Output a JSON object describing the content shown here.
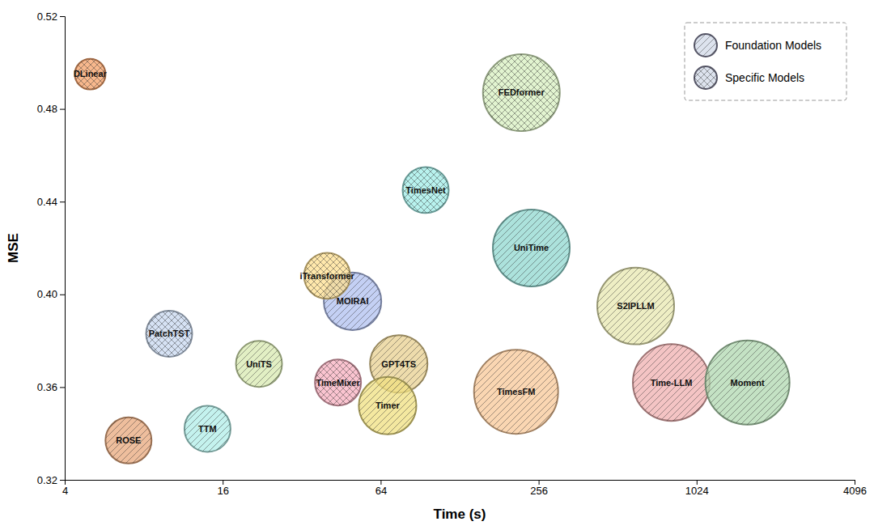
{
  "chart_data": {
    "type": "bubble",
    "xlabel": "Time (s)",
    "ylabel": "MSE",
    "log": "x",
    "xlim": [
      4,
      4096
    ],
    "xticks": [
      4,
      16,
      64,
      256,
      1024,
      4096
    ],
    "ylim": [
      0.32,
      0.52
    ],
    "yticks": [
      0.32,
      0.36,
      {
        "value": 0.4,
        "label": "0.40"
      },
      0.44,
      0.48,
      0.52
    ],
    "grid": false,
    "legend": "upper right",
    "series": [
      {
        "name": "Foundation Models",
        "marker": "diagonal-hatch",
        "labels": [
          "ROSE",
          "TTM",
          "UniTS",
          "MOIRAI",
          "GPT4TS",
          "Timer",
          "TimesFM",
          "UniTime",
          "S2IPLLM",
          "Time-LLM",
          "Moment"
        ],
        "x": [
          7,
          14,
          22,
          50,
          75,
          68,
          210,
          240,
          600,
          820,
          1600
        ],
        "values": [
          0.337,
          0.342,
          0.37,
          0.397,
          0.37,
          0.352,
          0.358,
          0.42,
          0.395,
          0.362,
          0.362
        ],
        "sizes": [
          1800,
          1800,
          1800,
          2800,
          2800,
          2800,
          6000,
          5000,
          5000,
          5000,
          6000
        ],
        "colors": [
          "#E8A87C",
          "#B0EEE8",
          "#D8EAB0",
          "#B0C0F0",
          "#E8D090",
          "#F0E080",
          "#F8C898",
          "#90D8D0",
          "#E8E8B0",
          "#F0B0B0",
          "#B0D8B0"
        ]
      },
      {
        "name": "Specific Models",
        "marker": "cross-hatch",
        "labels": [
          "DLinear",
          "PatchTST",
          "iTransformer",
          "TimeMixer",
          "TimesNet",
          "FEDformer"
        ],
        "x": [
          5,
          10,
          40,
          44,
          95,
          220
        ],
        "values": [
          0.495,
          0.383,
          0.408,
          0.362,
          0.445,
          0.487
        ],
        "sizes": [
          800,
          1800,
          1800,
          1800,
          1800,
          5000
        ],
        "colors": [
          "#F5A067",
          "#C8D8F0",
          "#FFE090",
          "#F8B0C0",
          "#A0EEE8",
          "#D8F0C0"
        ]
      }
    ]
  }
}
